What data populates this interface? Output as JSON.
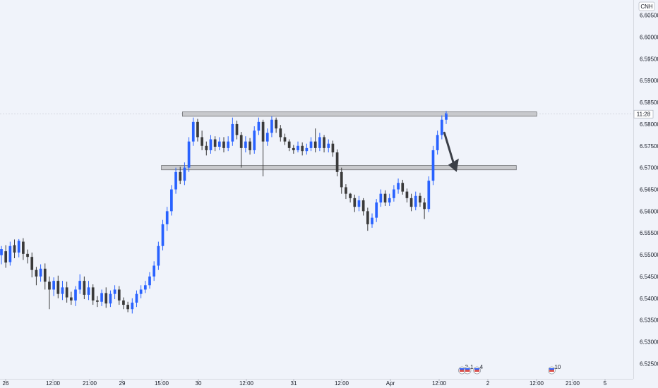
{
  "symbol_badge": "CNH",
  "price_tag": "11:28",
  "colors": {
    "background": "#f0f3fa",
    "candle_up": "#2962ff",
    "candle_down": "#3a3a3a",
    "zone_fill": "#c8c9cc",
    "zone_border": "#6f7074",
    "arrow": "#3b3f47"
  },
  "chart_data": {
    "type": "candlestick",
    "y_axis": {
      "range": [
        6.5215,
        6.6085
      ],
      "ticks": [
        "6.60500",
        "6.60000",
        "6.59500",
        "6.59000",
        "6.58500",
        "6.58000",
        "6.57500",
        "6.57000",
        "6.56500",
        "6.56000",
        "6.55500",
        "6.55000",
        "6.54500",
        "6.54000",
        "6.53500",
        "6.53000",
        "6.52500"
      ]
    },
    "x_axis": {
      "ticks": [
        "26",
        "12:00",
        "21:00",
        "29",
        "15:00",
        "30",
        "12:00",
        "31",
        "12:00",
        "Apr",
        "12:00",
        "2",
        "12:00",
        "21:00",
        "5"
      ]
    },
    "series": [
      {
        "points": [
          [
            6.5499,
            6.5513
          ],
          [
            6.5508,
            6.5482
          ],
          [
            6.5483,
            6.552
          ],
          [
            6.5522,
            6.5505
          ],
          [
            6.5505,
            6.5532
          ],
          [
            6.553,
            6.5502
          ],
          [
            6.5502,
            6.5495
          ],
          [
            6.5495,
            6.5465
          ],
          [
            6.5465,
            6.545
          ],
          [
            6.545,
            6.5468
          ],
          [
            6.5468,
            6.5438
          ],
          [
            6.5438,
            6.542
          ],
          [
            6.542,
            6.544
          ],
          [
            6.544,
            6.541
          ],
          [
            6.541,
            6.5425
          ],
          [
            6.5425,
            6.5402
          ],
          [
            6.5402,
            6.5395
          ],
          [
            6.5395,
            6.542
          ],
          [
            6.542,
            6.544
          ],
          [
            6.544,
            6.5408
          ],
          [
            6.5408,
            6.5425
          ],
          [
            6.5425,
            6.5395
          ],
          [
            6.5395,
            6.5392
          ],
          [
            6.5392,
            6.5412
          ],
          [
            6.5412,
            6.5388
          ],
          [
            6.5388,
            6.541
          ],
          [
            6.541,
            6.542
          ],
          [
            6.542,
            6.5395
          ],
          [
            6.5395,
            6.5385
          ],
          [
            6.5385,
            6.5375
          ],
          [
            6.5375,
            6.539
          ],
          [
            6.539,
            6.541
          ],
          [
            6.541,
            6.542
          ],
          [
            6.542,
            6.543
          ],
          [
            6.543,
            6.545
          ],
          [
            6.545,
            6.5475
          ],
          [
            6.5475,
            6.552
          ],
          [
            6.552,
            6.557
          ],
          [
            6.557,
            6.56
          ],
          [
            6.56,
            6.565
          ],
          [
            6.565,
            6.569
          ],
          [
            6.569,
            6.567
          ],
          [
            6.567,
            6.57
          ],
          [
            6.57,
            6.576
          ],
          [
            6.576,
            6.5805
          ],
          [
            6.5805,
            6.577
          ],
          [
            6.577,
            6.575
          ],
          [
            6.575,
            6.574
          ],
          [
            6.574,
            6.5765
          ],
          [
            6.5765,
            6.5748
          ],
          [
            6.5748,
            6.576
          ],
          [
            6.576,
            6.5745
          ],
          [
            6.5745,
            6.576
          ],
          [
            6.576,
            6.58
          ],
          [
            6.58,
            6.5775
          ],
          [
            6.5775,
            6.5745
          ],
          [
            6.5745,
            6.576
          ],
          [
            6.576,
            6.574
          ],
          [
            6.574,
            6.5785
          ],
          [
            6.5785,
            6.5805
          ],
          [
            6.5805,
            6.576
          ],
          [
            6.576,
            6.578
          ],
          [
            6.578,
            6.581
          ],
          [
            6.581,
            6.579
          ],
          [
            6.579,
            6.577
          ],
          [
            6.577,
            6.576
          ],
          [
            6.576,
            6.5745
          ],
          [
            6.5745,
            6.574
          ],
          [
            6.574,
            6.575
          ],
          [
            6.575,
            6.5738
          ],
          [
            6.5738,
            6.5745
          ],
          [
            6.5745,
            6.576
          ],
          [
            6.576,
            6.5745
          ],
          [
            6.5745,
            6.577
          ],
          [
            6.577,
            6.5745
          ],
          [
            6.5745,
            6.5755
          ],
          [
            6.5755,
            6.5735
          ],
          [
            6.5735,
            6.569
          ],
          [
            6.569,
            6.5655
          ],
          [
            6.5655,
            6.564
          ],
          [
            6.564,
            6.563
          ],
          [
            6.563,
            6.561
          ],
          [
            6.561,
            6.5625
          ],
          [
            6.5625,
            6.56
          ],
          [
            6.56,
            6.557
          ],
          [
            6.557,
            6.5585
          ],
          [
            6.5585,
            6.562
          ],
          [
            6.562,
            6.564
          ],
          [
            6.564,
            6.562
          ],
          [
            6.562,
            6.563
          ],
          [
            6.563,
            6.565
          ],
          [
            6.565,
            6.5665
          ],
          [
            6.5665,
            6.5645
          ],
          [
            6.5645,
            6.563
          ],
          [
            6.563,
            6.561
          ],
          [
            6.561,
            6.5635
          ],
          [
            6.5635,
            6.562
          ],
          [
            6.562,
            6.5605
          ],
          [
            6.5605,
            6.567
          ],
          [
            6.567,
            6.574
          ],
          [
            6.574,
            6.5775
          ],
          [
            6.5775,
            6.581
          ],
          [
            6.581,
            6.5825
          ]
        ],
        "ranges": [
          [
            6.5478,
            6.552
          ],
          [
            6.547,
            6.5522
          ],
          [
            6.5475,
            6.553
          ],
          [
            6.5492,
            6.5535
          ],
          [
            6.5494,
            6.5536
          ],
          [
            6.5488,
            6.5538
          ],
          [
            6.548,
            6.5512
          ],
          [
            6.5448,
            6.5505
          ],
          [
            6.543,
            6.5472
          ],
          [
            6.5438,
            6.5478
          ],
          [
            6.542,
            6.548
          ],
          [
            6.5375,
            6.545
          ],
          [
            6.5405,
            6.5448
          ],
          [
            6.54,
            6.5452
          ],
          [
            6.5396,
            6.544
          ],
          [
            6.539,
            6.5438
          ],
          [
            6.5385,
            6.5415
          ],
          [
            6.5382,
            6.5428
          ],
          [
            6.541,
            6.5455
          ],
          [
            6.5398,
            6.545
          ],
          [
            6.5396,
            6.544
          ],
          [
            6.5385,
            6.5432
          ],
          [
            6.538,
            6.5405
          ],
          [
            6.5382,
            6.542
          ],
          [
            6.5378,
            6.5425
          ],
          [
            6.538,
            6.5418
          ],
          [
            6.5398,
            6.543
          ],
          [
            6.5385,
            6.5428
          ],
          [
            6.5375,
            6.5402
          ],
          [
            6.5368,
            6.5392
          ],
          [
            6.5365,
            6.54
          ],
          [
            6.538,
            6.5418
          ],
          [
            6.54,
            6.543
          ],
          [
            6.5412,
            6.544
          ],
          [
            6.5422,
            6.546
          ],
          [
            6.544,
            6.5485
          ],
          [
            6.5465,
            6.553
          ],
          [
            6.551,
            6.558
          ],
          [
            6.5555,
            6.561
          ],
          [
            6.559,
            6.566
          ],
          [
            6.564,
            6.57
          ],
          [
            6.5662,
            6.5702
          ],
          [
            6.566,
            6.5712
          ],
          [
            6.569,
            6.577
          ],
          [
            6.575,
            6.5815
          ],
          [
            6.576,
            6.5812
          ],
          [
            6.574,
            6.5785
          ],
          [
            6.5728,
            6.576
          ],
          [
            6.5732,
            6.5775
          ],
          [
            6.5738,
            6.5772
          ],
          [
            6.574,
            6.577
          ],
          [
            6.5735,
            6.577
          ],
          [
            6.5738,
            6.5772
          ],
          [
            6.575,
            6.5815
          ],
          [
            6.5765,
            6.5808
          ],
          [
            6.57,
            6.5782
          ],
          [
            6.5735,
            6.5772
          ],
          [
            6.573,
            6.5768
          ],
          [
            6.5732,
            6.5795
          ],
          [
            6.5775,
            6.5815
          ],
          [
            6.568,
            6.581
          ],
          [
            6.575,
            6.579
          ],
          [
            6.577,
            6.5818
          ],
          [
            6.578,
            6.5815
          ],
          [
            6.576,
            6.5798
          ],
          [
            6.5752,
            6.5778
          ],
          [
            6.5738,
            6.5765
          ],
          [
            6.5732,
            6.5752
          ],
          [
            6.5735,
            6.576
          ],
          [
            6.5728,
            6.5758
          ],
          [
            6.573,
            6.5755
          ],
          [
            6.5738,
            6.577
          ],
          [
            6.5735,
            6.579
          ],
          [
            6.5738,
            6.578
          ],
          [
            6.5735,
            6.5775
          ],
          [
            6.5735,
            6.5765
          ],
          [
            6.5725,
            6.5762
          ],
          [
            6.568,
            6.5742
          ],
          [
            6.564,
            6.57
          ],
          [
            6.5628,
            6.5662
          ],
          [
            6.562,
            6.5642
          ],
          [
            6.5598,
            6.5638
          ],
          [
            6.56,
            6.5635
          ],
          [
            6.559,
            6.563
          ],
          [
            6.5555,
            6.5608
          ],
          [
            6.5562,
            6.5595
          ],
          [
            6.5575,
            6.5628
          ],
          [
            6.561,
            6.565
          ],
          [
            6.5612,
            6.5648
          ],
          [
            6.5612,
            6.564
          ],
          [
            6.5622,
            6.566
          ],
          [
            6.564,
            6.5675
          ],
          [
            6.5638,
            6.5672
          ],
          [
            6.562,
            6.5652
          ],
          [
            6.56,
            6.564
          ],
          [
            6.5602,
            6.5645
          ],
          [
            6.561,
            6.5642
          ],
          [
            6.5582,
            6.563
          ],
          [
            6.5598,
            6.568
          ],
          [
            6.566,
            6.575
          ],
          [
            6.573,
            6.5785
          ],
          [
            6.5765,
            6.582
          ],
          [
            6.58,
            6.583
          ]
        ]
      }
    ],
    "zones": [
      {
        "price": [
          6.5818,
          6.5828
        ],
        "x_from": 0.2881,
        "x_to": 0.8476
      },
      {
        "price": [
          6.5695,
          6.5705
        ],
        "x_from": 0.2549,
        "x_to": 0.8153
      }
    ],
    "current_price": 6.5823,
    "arrow": {
      "from": [
        0.7017,
        6.578
      ],
      "to": [
        0.72,
        6.5695
      ]
    },
    "event_markers": [
      {
        "x": 0.7296,
        "label": "2"
      },
      {
        "x": 0.7381,
        "label": "1"
      },
      {
        "x": 0.7532,
        "label": "4"
      },
      {
        "x": 0.8712,
        "label": "10"
      }
    ]
  }
}
